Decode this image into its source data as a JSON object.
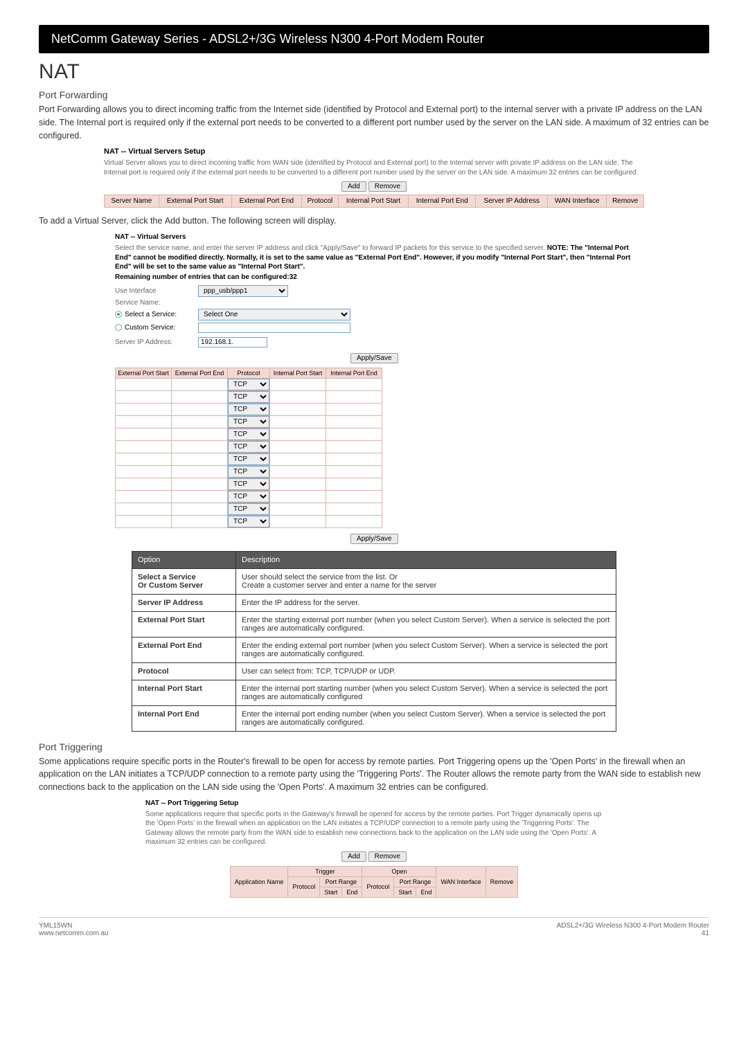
{
  "header": {
    "band": "NetComm Gateway Series - ADSL2+/3G Wireless N300 4-Port Modem Router"
  },
  "title": "NAT",
  "pf": {
    "heading": "Port Forwarding",
    "body": "Port Forwarding allows you to direct incoming traffic from the Internet side (identified by Protocol and External port) to the internal server with a private IP address on the LAN side. The Internal port is required only if the external port needs to be converted to a different port number used by the server on the LAN side. A maximum of 32 entries can be configured."
  },
  "vss": {
    "title": "NAT -- Virtual Servers Setup",
    "desc": "Virtual Server allows you to direct incoming traffic from WAN side (identified by Protocol and External port) to the Internal server with private IP address on the LAN side. The Internal port is required only if the external port needs to be converted to a different port number used by the server on the LAN side. A maximum 32 entries can be configured.",
    "add": "Add",
    "remove": "Remove",
    "cols": [
      "Server Name",
      "External Port Start",
      "External Port End",
      "Protocol",
      "Internal Port Start",
      "Internal Port End",
      "Server IP Address",
      "WAN Interface",
      "Remove"
    ]
  },
  "add_caption": "To add a Virtual Server, click the Add button. The following screen will display.",
  "add": {
    "title": "NAT -- Virtual Servers",
    "blurb_a": "Select the service name, and enter the server IP address and click \"Apply/Save\" to forward IP packets for this service to the specified server. ",
    "blurb_b": "NOTE: The \"Internal Port End\" cannot be modified directly. Normally, it is set to the same value as \"External Port End\". However, if you modify \"Internal Port Start\", then \"Internal Port End\" will be set to the same value as \"Internal Port Start\".",
    "remain": "Remaining number of entries that can be configured:32",
    "use_if_label": "Use Interface",
    "use_if_val": "ppp_usb/ppp1",
    "svcname_label": "Service Name:",
    "select_svc": "Select a Service:",
    "select_svc_val": "Select One",
    "custom_svc": "Custom Service:",
    "ip_label": "Server IP Address:",
    "ip_val": "192.168.1.",
    "apply": "Apply/Save",
    "t12cols": [
      "External Port Start",
      "External Port End",
      "Protocol",
      "Internal Port Start",
      "Internal Port End"
    ],
    "proto": "TCP",
    "rows": 12
  },
  "opt": {
    "headers": [
      "Option",
      "Description"
    ],
    "rows": [
      [
        "Select a Service\nOr Custom Server",
        "User should select the service from the list. Or\nCreate a customer server and enter a name for the server"
      ],
      [
        "Server IP Address",
        "Enter the IP address for the server."
      ],
      [
        "External Port Start",
        "Enter the starting external port number (when you select Custom Server). When a service is selected the port ranges are automatically configured."
      ],
      [
        "External Port End",
        "Enter the ending external port number (when you select Custom Server). When a service is selected the port ranges are automatically configured."
      ],
      [
        "Protocol",
        "User can select from: TCP, TCP/UDP or UDP."
      ],
      [
        "Internal Port Start",
        "Enter the internal port starting number (when you select Custom Server). When a service is selected the port ranges are automatically configured"
      ],
      [
        "Internal Port End",
        "Enter the internal port ending number (when you select Custom Server). When a service is selected the port ranges are automatically configured."
      ]
    ]
  },
  "pt": {
    "heading": "Port Triggering",
    "body": "Some applications require specific ports in the Router's firewall to be open for access by remote parties. Port Triggering opens up the 'Open Ports' in the firewall when an application on the LAN initiates a TCP/UDP connection to a remote party using the 'Triggering Ports'. The Router allows the remote party from the WAN side to establish new connections back to the application on the LAN side using the 'Open Ports'. A maximum 32 entries can be configured."
  },
  "pts": {
    "title": "NAT -- Port Triggering Setup",
    "desc": "Some applications require that specific ports in the Gateway's firewall be opened for access by the remote parties. Port Trigger dynamically opens up the 'Open Ports' in the firewall when an application on the LAN initiates a TCP/UDP connection to a remote party using the 'Triggering Ports'. The Gateway allows the remote party from the WAN side to establish new connections back to the application on the LAN side using the 'Open Ports'. A maximum 32 entries can be configured.",
    "add": "Add",
    "remove": "Remove",
    "r1": [
      "Application Name",
      "Trigger",
      "Open",
      "WAN Interface",
      "Remove"
    ],
    "r2": [
      "Protocol",
      "Port Range",
      "Protocol",
      "Port Range"
    ],
    "r3": [
      "Start",
      "End",
      "Start",
      "End"
    ]
  },
  "footer": {
    "left1": "YML15WN",
    "left2": "www.netcomm.com.au",
    "right1": "ADSL2+/3G Wireless N300 4-Port Modem Router",
    "right2": "41"
  }
}
